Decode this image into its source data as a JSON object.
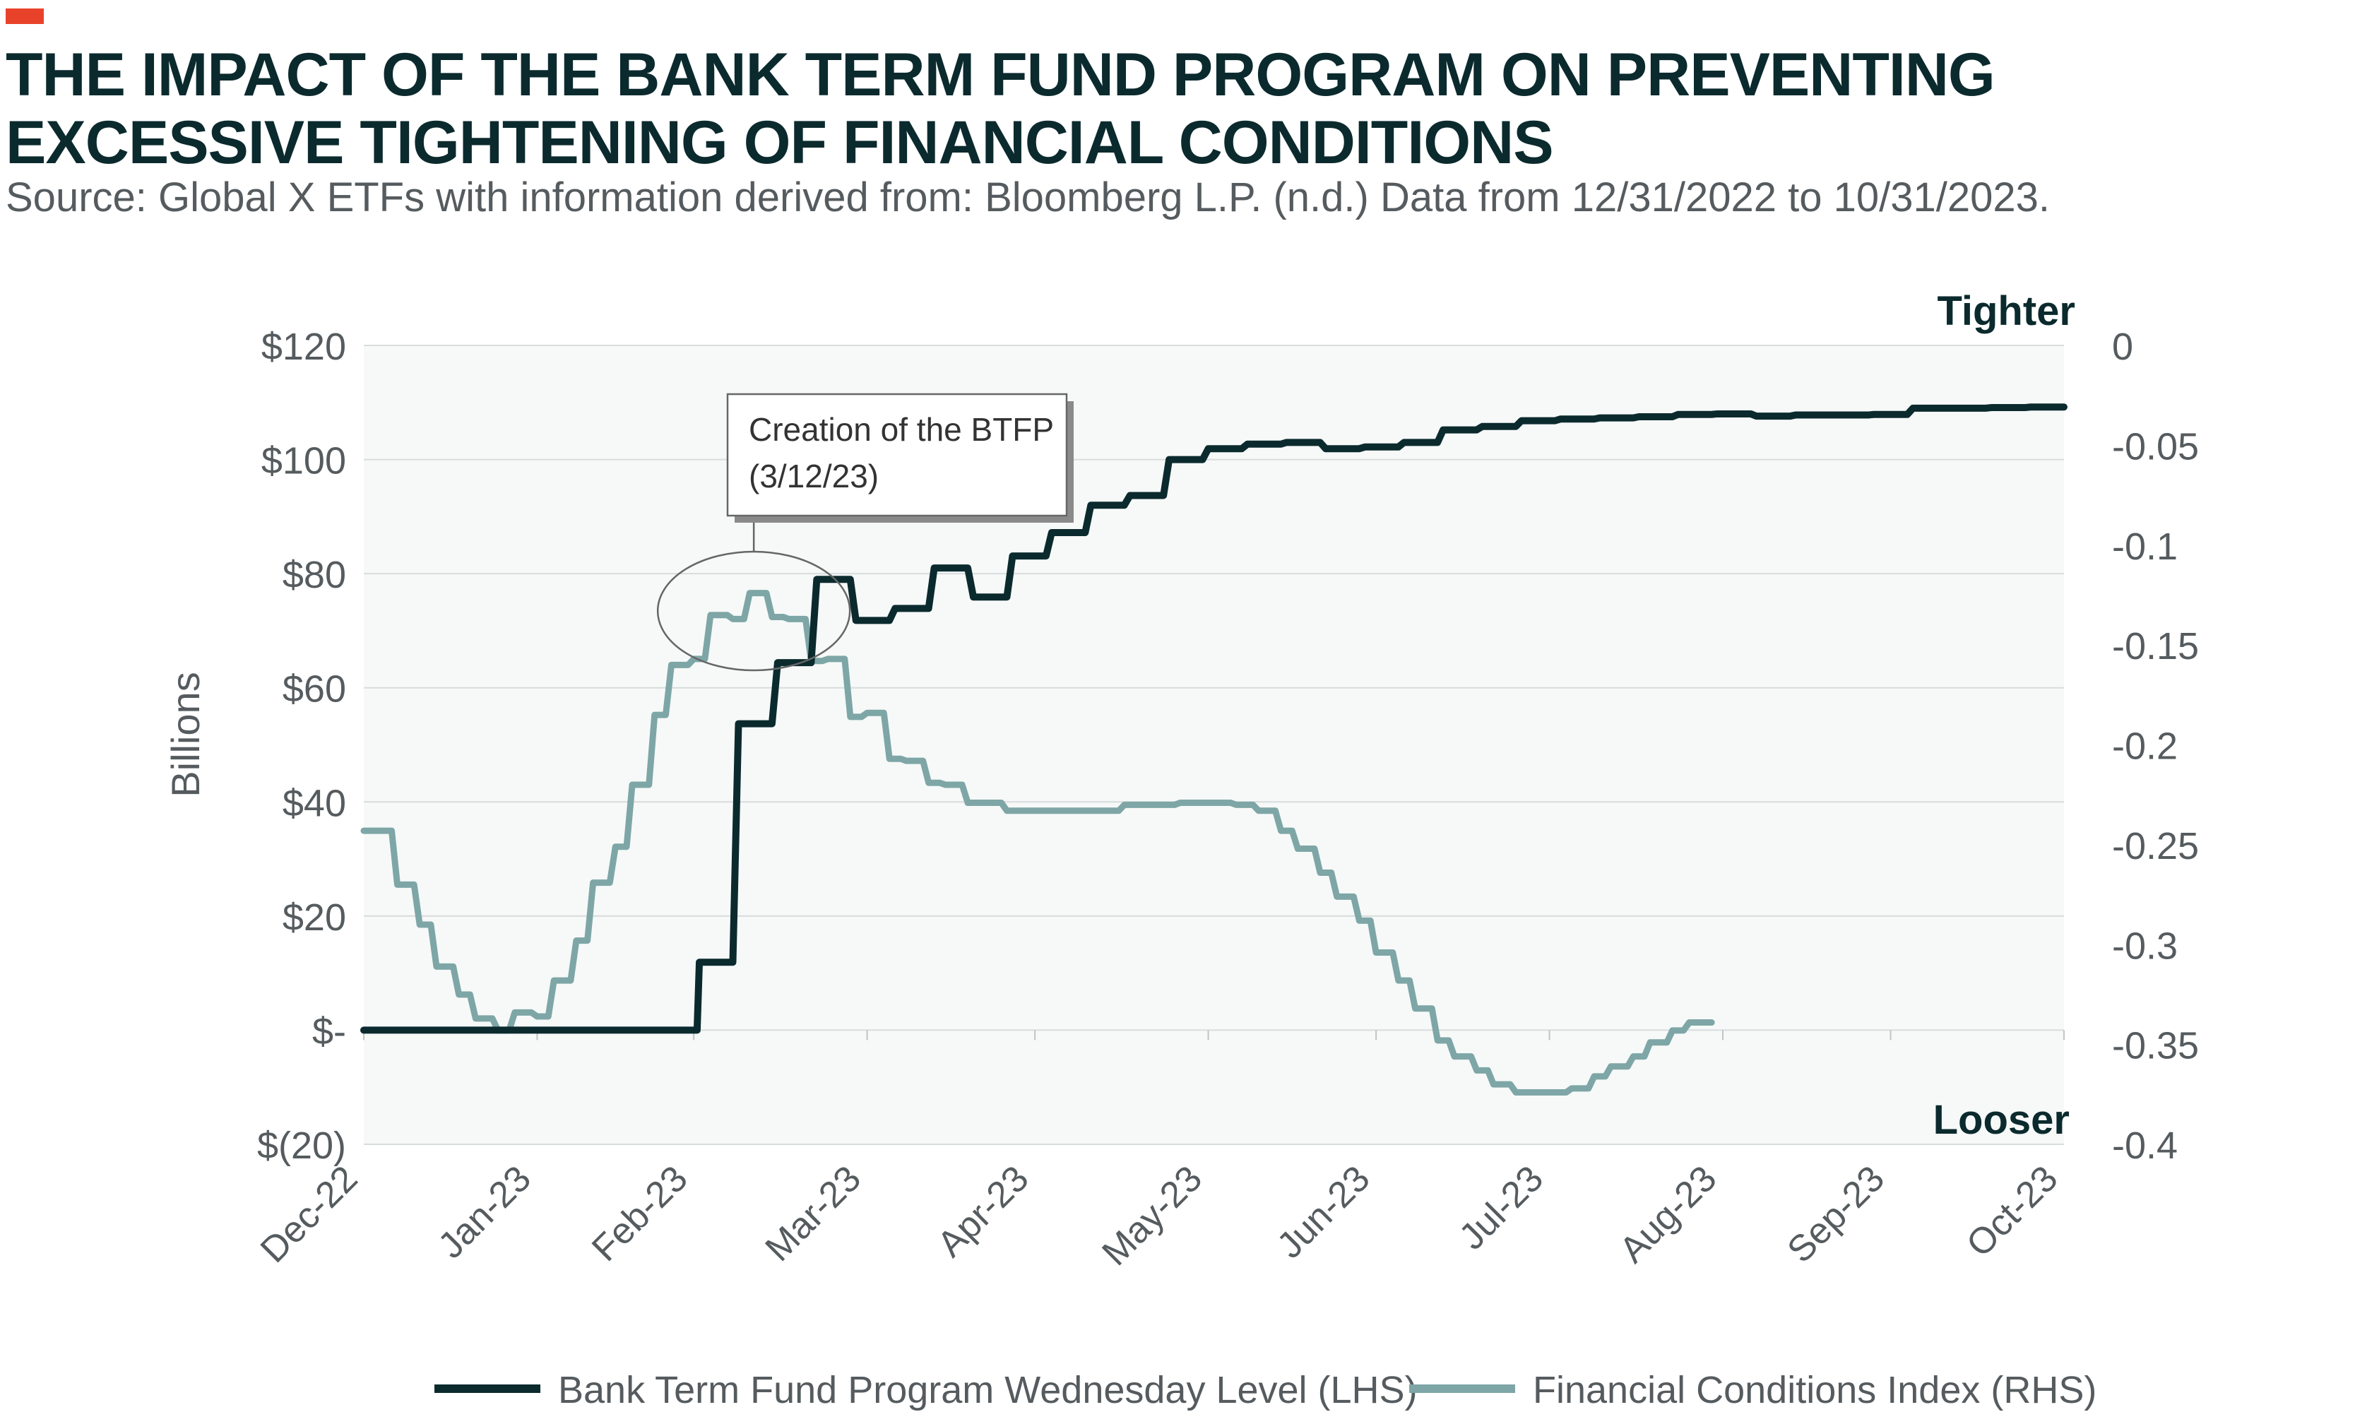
{
  "header": {
    "accent_color": "#e8432a",
    "title": "THE IMPACT OF THE BANK TERM FUND PROGRAM ON PREVENTING EXCESSIVE TIGHTENING OF FINANCIAL CONDITIONS",
    "subtitle": "Source: Global X ETFs with information derived from: Bloomberg L.P. (n.d.) Data from 12/31/2022 to 10/31/2023."
  },
  "chart_data": {
    "type": "line",
    "title": "",
    "colors": {
      "btfp": "#0b2a2e",
      "fci": "#7ea6a6",
      "plot_bg": "#f6f9f8",
      "grid": "#d8dcdc"
    },
    "x_range": [
      "2022-12-31",
      "2023-10-31"
    ],
    "x_ticks": [
      {
        "label": "Dec-22",
        "date": "2022-12-31"
      },
      {
        "label": "Jan-23",
        "date": "2023-01-31"
      },
      {
        "label": "Feb-23",
        "date": "2023-02-28"
      },
      {
        "label": "Mar-23",
        "date": "2023-03-31"
      },
      {
        "label": "Apr-23",
        "date": "2023-04-30"
      },
      {
        "label": "May-23",
        "date": "2023-05-31"
      },
      {
        "label": "Jun-23",
        "date": "2023-06-30"
      },
      {
        "label": "Jul-23",
        "date": "2023-07-31"
      },
      {
        "label": "Aug-23",
        "date": "2023-08-31"
      },
      {
        "label": "Sep-23",
        "date": "2023-09-30"
      },
      {
        "label": "Oct-23",
        "date": "2023-10-31"
      }
    ],
    "y_left": {
      "label": "Billions",
      "range": [
        -20,
        120
      ],
      "ticks": [
        {
          "value": 120,
          "label": "$120"
        },
        {
          "value": 100,
          "label": "$100"
        },
        {
          "value": 80,
          "label": "$80"
        },
        {
          "value": 60,
          "label": "$60"
        },
        {
          "value": 40,
          "label": "$40"
        },
        {
          "value": 20,
          "label": "$20"
        },
        {
          "value": 0,
          "label": "$-"
        },
        {
          "value": -20,
          "label": "$(20)"
        }
      ]
    },
    "y_right": {
      "range": [
        -0.4,
        0
      ],
      "ticks": [
        {
          "value": 0,
          "label": "0"
        },
        {
          "value": -0.05,
          "label": "-0.05"
        },
        {
          "value": -0.1,
          "label": "-0.1"
        },
        {
          "value": -0.15,
          "label": "-0.15"
        },
        {
          "value": -0.2,
          "label": "-0.2"
        },
        {
          "value": -0.25,
          "label": "-0.25"
        },
        {
          "value": -0.3,
          "label": "-0.3"
        },
        {
          "value": -0.35,
          "label": "-0.35"
        },
        {
          "value": -0.4,
          "label": "-0.4"
        }
      ],
      "top_label": "Tighter",
      "bottom_label": "Looser"
    },
    "annotation": {
      "line1": "Creation of the BTFP",
      "line2": "(3/12/23)",
      "date": "2023-03-12"
    },
    "legend_position": "bottom",
    "series": [
      {
        "name": "Bank Term Fund Program Wednesday Level (LHS)",
        "axis": "left",
        "points": [
          [
            "2022-12-31",
            0
          ],
          [
            "2023-02-28",
            0
          ],
          [
            "2023-03-01",
            11.9
          ],
          [
            "2023-03-08",
            53.7
          ],
          [
            "2023-03-15",
            64.4
          ],
          [
            "2023-03-22",
            79
          ],
          [
            "2023-03-29",
            71.8
          ],
          [
            "2023-04-05",
            73.9
          ],
          [
            "2023-04-12",
            81
          ],
          [
            "2023-04-19",
            75.9
          ],
          [
            "2023-04-26",
            83.1
          ],
          [
            "2023-05-03",
            87.2
          ],
          [
            "2023-05-10",
            92
          ],
          [
            "2023-05-17",
            93.7
          ],
          [
            "2023-05-24",
            100
          ],
          [
            "2023-05-31",
            101.9
          ],
          [
            "2023-06-07",
            102.7
          ],
          [
            "2023-06-14",
            103
          ],
          [
            "2023-06-21",
            101.9
          ],
          [
            "2023-06-28",
            102.2
          ],
          [
            "2023-07-05",
            103
          ],
          [
            "2023-07-12",
            105.2
          ],
          [
            "2023-07-19",
            105.8
          ],
          [
            "2023-07-26",
            106.8
          ],
          [
            "2023-08-02",
            107.1
          ],
          [
            "2023-08-09",
            107.3
          ],
          [
            "2023-08-16",
            107.5
          ],
          [
            "2023-08-23",
            107.9
          ],
          [
            "2023-08-30",
            108.0
          ],
          [
            "2023-09-06",
            107.6
          ],
          [
            "2023-09-13",
            107.8
          ],
          [
            "2023-09-20",
            107.8
          ],
          [
            "2023-09-27",
            107.9
          ],
          [
            "2023-10-04",
            109.0
          ],
          [
            "2023-10-11",
            109.0
          ],
          [
            "2023-10-18",
            109.1
          ],
          [
            "2023-10-25",
            109.2
          ],
          [
            "2023-10-31",
            109.2
          ]
        ]
      },
      {
        "name": "Financial Conditions Index (RHS)",
        "axis": "right",
        "points": [
          [
            "2022-12-31",
            -0.243
          ],
          [
            "2023-01-03",
            -0.243
          ],
          [
            "2023-01-06",
            -0.27
          ],
          [
            "2023-01-10",
            -0.29
          ],
          [
            "2023-01-13",
            -0.311
          ],
          [
            "2023-01-17",
            -0.325
          ],
          [
            "2023-01-20",
            -0.337
          ],
          [
            "2023-01-24",
            -0.343
          ],
          [
            "2023-01-27",
            -0.334
          ],
          [
            "2023-01-31",
            -0.336
          ],
          [
            "2023-02-03",
            -0.318
          ],
          [
            "2023-02-07",
            -0.298
          ],
          [
            "2023-02-10",
            -0.269
          ],
          [
            "2023-02-14",
            -0.251
          ],
          [
            "2023-02-17",
            -0.22
          ],
          [
            "2023-02-21",
            -0.185
          ],
          [
            "2023-02-24",
            -0.16
          ],
          [
            "2023-02-28",
            -0.157
          ],
          [
            "2023-03-03",
            -0.135
          ],
          [
            "2023-03-07",
            -0.137
          ],
          [
            "2023-03-10",
            -0.124
          ],
          [
            "2023-03-14",
            -0.136
          ],
          [
            "2023-03-17",
            -0.137
          ],
          [
            "2023-03-21",
            -0.158
          ],
          [
            "2023-03-24",
            -0.157
          ],
          [
            "2023-03-28",
            -0.186
          ],
          [
            "2023-03-31",
            -0.184
          ],
          [
            "2023-04-04",
            -0.207
          ],
          [
            "2023-04-07",
            -0.208
          ],
          [
            "2023-04-11",
            -0.219
          ],
          [
            "2023-04-14",
            -0.22
          ],
          [
            "2023-04-18",
            -0.229
          ],
          [
            "2023-04-21",
            -0.229
          ],
          [
            "2023-04-25",
            -0.233
          ],
          [
            "2023-04-28",
            -0.233
          ],
          [
            "2023-05-12",
            -0.233
          ],
          [
            "2023-05-16",
            -0.23
          ],
          [
            "2023-05-26",
            -0.229
          ],
          [
            "2023-06-05",
            -0.23
          ],
          [
            "2023-06-09",
            -0.233
          ],
          [
            "2023-06-13",
            -0.243
          ],
          [
            "2023-06-16",
            -0.252
          ],
          [
            "2023-06-20",
            -0.264
          ],
          [
            "2023-06-23",
            -0.276
          ],
          [
            "2023-06-27",
            -0.288
          ],
          [
            "2023-06-30",
            -0.304
          ],
          [
            "2023-07-04",
            -0.318
          ],
          [
            "2023-07-07",
            -0.332
          ],
          [
            "2023-07-11",
            -0.348
          ],
          [
            "2023-07-14",
            -0.356
          ],
          [
            "2023-07-18",
            -0.363
          ],
          [
            "2023-07-21",
            -0.37
          ],
          [
            "2023-07-25",
            -0.374
          ],
          [
            "2023-07-28",
            -0.374
          ],
          [
            "2023-08-01",
            -0.374
          ],
          [
            "2023-08-04",
            -0.372
          ],
          [
            "2023-08-08",
            -0.366
          ],
          [
            "2023-08-11",
            -0.361
          ],
          [
            "2023-08-15",
            -0.356
          ],
          [
            "2023-08-18",
            -0.349
          ],
          [
            "2023-08-22",
            -0.343
          ],
          [
            "2023-08-25",
            -0.339
          ],
          [
            "2023-08-29",
            -0.339
          ]
        ]
      }
    ]
  }
}
